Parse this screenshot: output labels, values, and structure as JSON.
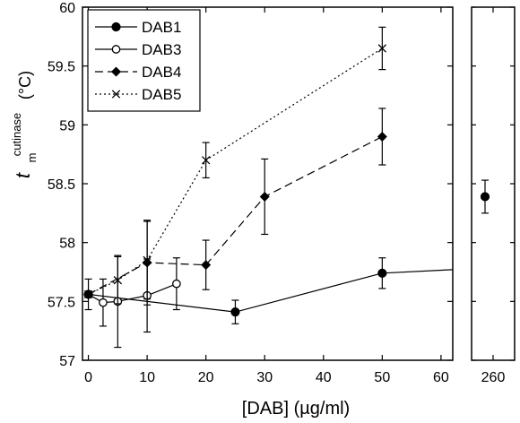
{
  "chart_data": {
    "type": "line",
    "xlabel": "[DAB] (µg/ml)",
    "ylabel_main": "t",
    "ylabel_sub": "m",
    "ylabel_sup": "cutinase",
    "ylabel_unit": "(°C)",
    "ylim": [
      57,
      60
    ],
    "yticks": [
      57,
      57.5,
      58,
      58.5,
      59,
      59.5,
      60
    ],
    "yticklabels": [
      "57",
      "57.5",
      "58",
      "58.5",
      "59",
      "59.5",
      "60"
    ],
    "xlim_main": [
      -1,
      62
    ],
    "xticks_main": [
      0,
      10,
      20,
      30,
      40,
      50,
      60
    ],
    "xticklabels_main": [
      "0",
      "10",
      "20",
      "30",
      "40",
      "50",
      "60"
    ],
    "xlim_break": [
      252,
      268
    ],
    "xticks_break": [
      260
    ],
    "xticklabels_break": [
      "260"
    ],
    "legend_position": "top-left",
    "series": [
      {
        "name": "DAB1",
        "marker": "filled-circle",
        "line": "solid",
        "points": [
          {
            "x": 0,
            "y": 57.56,
            "err": 0.13
          },
          {
            "x": 25,
            "y": 57.41,
            "err": 0.1
          },
          {
            "x": 50,
            "y": 57.74,
            "err": 0.13
          },
          {
            "x": 62,
            "y": 57.77,
            "err": null,
            "marker": false
          }
        ],
        "break_points": [
          {
            "x": 257,
            "y": 58.39,
            "err": 0.14
          }
        ]
      },
      {
        "name": "DAB3",
        "marker": "open-circle",
        "line": "solid",
        "points": [
          {
            "x": 0,
            "y": 57.56,
            "err": null
          },
          {
            "x": 2.5,
            "y": 57.49,
            "err": 0.2
          },
          {
            "x": 5,
            "y": 57.5,
            "err": 0.39
          },
          {
            "x": 10,
            "y": 57.55,
            "err": 0.31
          },
          {
            "x": 15,
            "y": 57.65,
            "err": 0.22
          }
        ]
      },
      {
        "name": "DAB4",
        "marker": "filled-diamond",
        "line": "dashed",
        "points": [
          {
            "x": 0,
            "y": 57.56,
            "err": null
          },
          {
            "x": 10,
            "y": 57.83,
            "err": 0.36
          },
          {
            "x": 20,
            "y": 57.81,
            "err": 0.21
          },
          {
            "x": 30,
            "y": 58.39,
            "err": 0.32
          },
          {
            "x": 50,
            "y": 58.9,
            "err": 0.24
          }
        ]
      },
      {
        "name": "DAB5",
        "marker": "x",
        "line": "dotted",
        "points": [
          {
            "x": 0,
            "y": 57.56,
            "err": null
          },
          {
            "x": 5,
            "y": 57.68,
            "err": 0.2
          },
          {
            "x": 10,
            "y": 57.85,
            "err": 0.33
          },
          {
            "x": 20,
            "y": 58.7,
            "err": 0.15
          },
          {
            "x": 50,
            "y": 59.65,
            "err": 0.18
          }
        ]
      }
    ]
  }
}
